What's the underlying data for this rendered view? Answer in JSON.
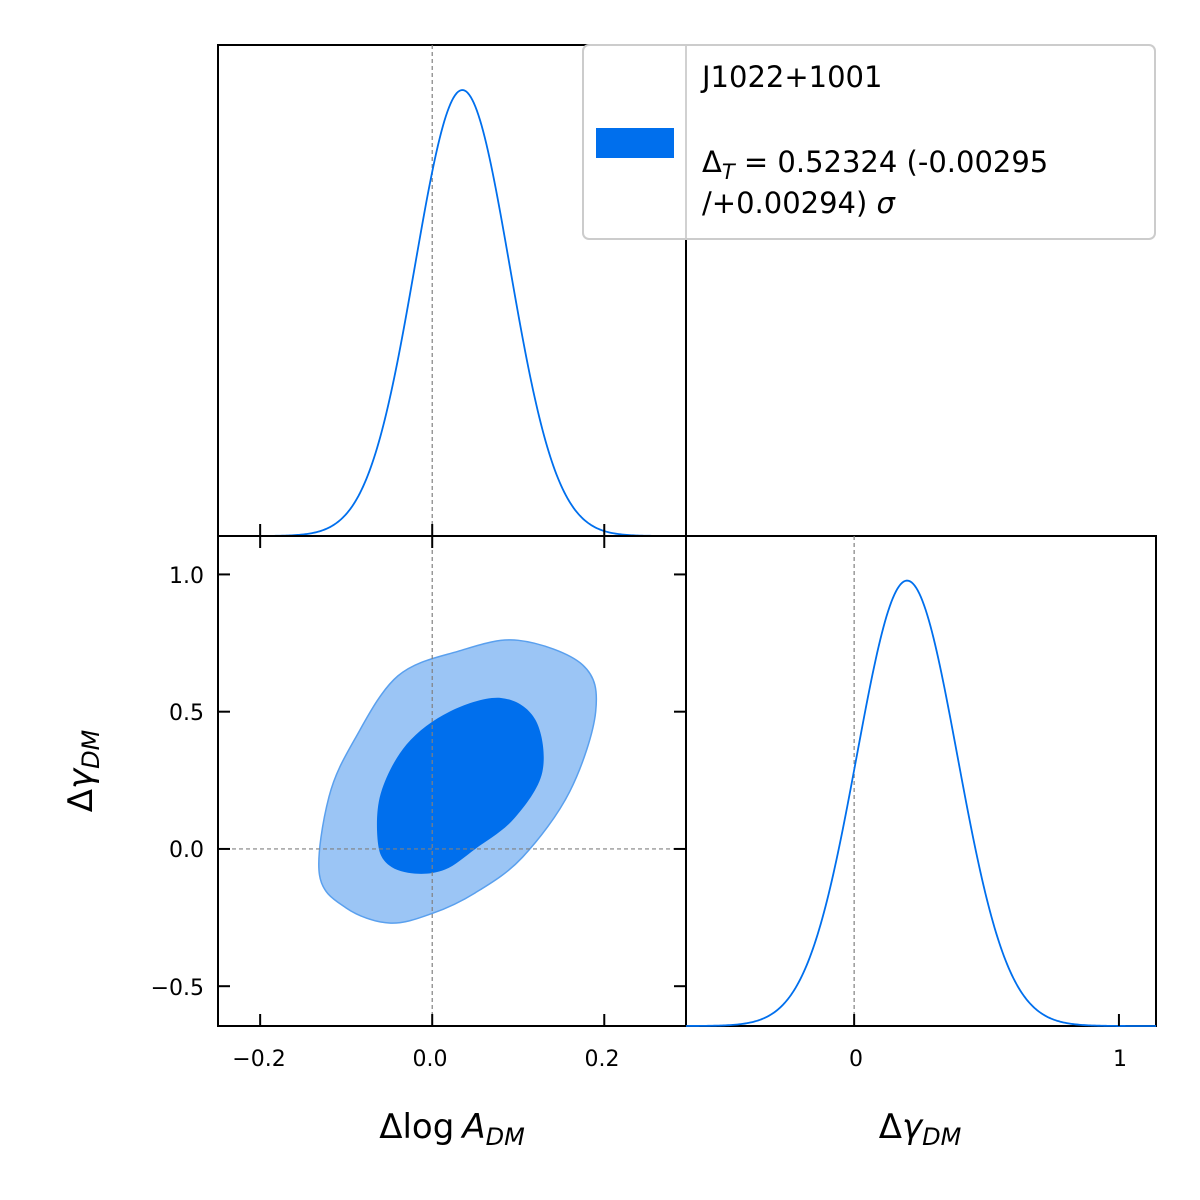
{
  "colors": {
    "line": "#006FED",
    "inner_contour": "#006FED",
    "outer_contour": "#9BC5F5",
    "outer_edge": "#5AA0EE",
    "reference_line": "#808080",
    "frame": "#000000"
  },
  "legend": {
    "placement": "top-right",
    "label_line1": "J1022+1001",
    "delta_symbol": "Δ",
    "delta_subscript": "T",
    "value_text": " = 0.52324 (-0.00295",
    "error_line": "/+0.00294) ",
    "sigma_symbol": "σ"
  },
  "axis_labels": {
    "logA": {
      "delta": "Δ",
      "main": "log",
      "var": "A",
      "subscript": "DM"
    },
    "gamma": {
      "delta": "Δ",
      "var": "γ",
      "subscript": "DM"
    }
  },
  "ticks": {
    "logA": [
      "−0.2",
      "0.0",
      "0.2"
    ],
    "gamma_left": [
      "1.0",
      "0.5",
      "0.0",
      "−0.5"
    ],
    "gamma_bottom": [
      "0",
      "1"
    ]
  },
  "chart_data": [
    {
      "type": "line",
      "panel": "marginal logA",
      "xlim": [
        -0.249,
        0.295
      ],
      "truth": 0,
      "series": [
        {
          "mean": 0.035,
          "sigma": 0.055,
          "peak": 1.0
        }
      ]
    },
    {
      "type": "contour",
      "panel": "2D logA vs gamma",
      "xlim": [
        -0.249,
        0.295
      ],
      "ylim": [
        -0.645,
        1.14
      ],
      "truth": [
        0,
        0
      ],
      "contours": [
        {
          "level": "95%",
          "points": [
            [
              -0.131,
              -0.095
            ],
            [
              -0.1,
              -0.215
            ],
            [
              -0.05,
              -0.27
            ],
            [
              0.0,
              -0.235
            ],
            [
              0.05,
              -0.16
            ],
            [
              0.105,
              -0.03
            ],
            [
              0.16,
              0.21
            ],
            [
              0.19,
              0.5
            ],
            [
              0.175,
              0.67
            ],
            [
              0.1,
              0.76
            ],
            [
              0.03,
              0.72
            ],
            [
              -0.04,
              0.63
            ],
            [
              -0.09,
              0.4
            ],
            [
              -0.12,
              0.19
            ]
          ]
        },
        {
          "level": "68%",
          "points": [
            [
              -0.063,
              0.02
            ],
            [
              -0.05,
              -0.06
            ],
            [
              -0.02,
              -0.09
            ],
            [
              0.015,
              -0.075
            ],
            [
              0.05,
              0.0
            ],
            [
              0.095,
              0.11
            ],
            [
              0.128,
              0.28
            ],
            [
              0.12,
              0.47
            ],
            [
              0.08,
              0.55
            ],
            [
              0.02,
              0.5
            ],
            [
              -0.03,
              0.38
            ],
            [
              -0.06,
              0.2
            ]
          ]
        }
      ]
    },
    {
      "type": "line",
      "panel": "marginal gamma",
      "xlim": [
        -0.635,
        1.14
      ],
      "truth": 0,
      "series": [
        {
          "mean": 0.2,
          "sigma": 0.19,
          "peak": 0.98
        }
      ]
    }
  ]
}
